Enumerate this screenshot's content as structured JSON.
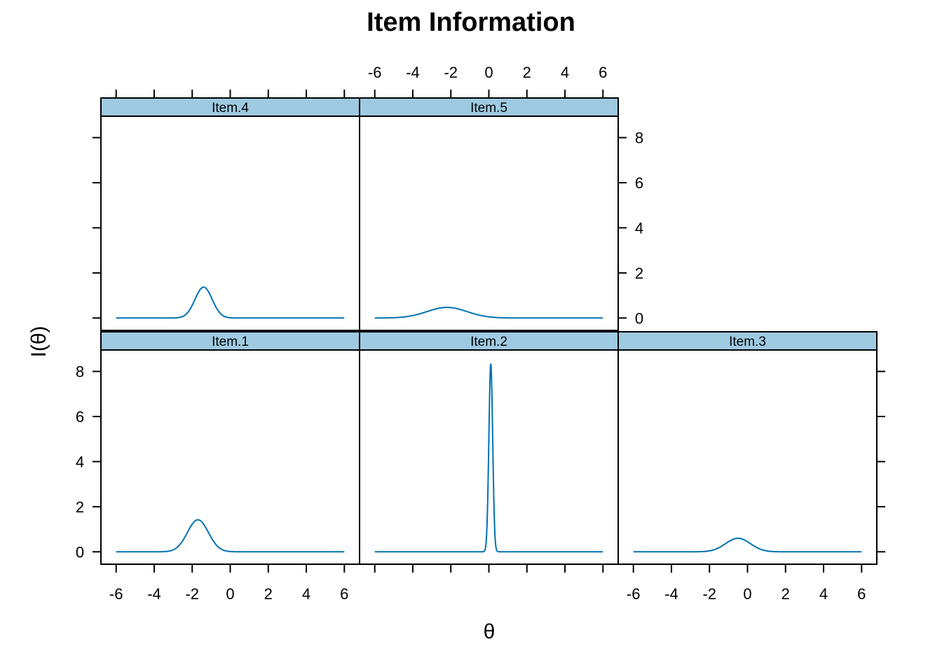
{
  "chart_data": {
    "type": "line",
    "title": "Item Information",
    "xlabel": "θ",
    "ylabel": "I(θ)",
    "xlim": [
      -6.8,
      6.8
    ],
    "ylim": [
      -0.55,
      8.95
    ],
    "x_ticks": [
      -6,
      -4,
      -2,
      0,
      2,
      4,
      6
    ],
    "y_ticks": [
      0,
      2,
      4,
      6,
      8
    ],
    "colors": {
      "strip": "#9ecae1",
      "line": "#0072b2"
    },
    "panels": [
      {
        "name": "Item.1",
        "peak_theta": -1.7,
        "peak_info": 1.42,
        "sd": 0.55
      },
      {
        "name": "Item.2",
        "peak_theta": 0.1,
        "peak_info": 8.35,
        "sd": 0.1
      },
      {
        "name": "Item.3",
        "peak_theta": -0.5,
        "peak_info": 0.6,
        "sd": 0.65
      },
      {
        "name": "Item.4",
        "peak_theta": -1.4,
        "peak_info": 1.37,
        "sd": 0.45
      },
      {
        "name": "Item.5",
        "peak_theta": -2.2,
        "peak_info": 0.47,
        "sd": 1.05
      }
    ]
  }
}
